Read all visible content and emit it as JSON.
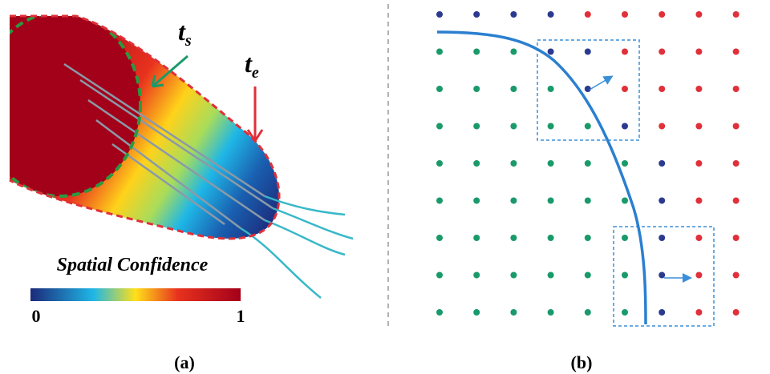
{
  "panel_a": {
    "start_label": {
      "main": "t",
      "sub": "s"
    },
    "end_label": {
      "main": "t",
      "sub": "e"
    },
    "colorbar": {
      "title": "Spatial Confidence",
      "min_label": "0",
      "max_label": "1"
    },
    "caption": "(a)"
  },
  "panel_b": {
    "caption": "(b)"
  }
}
